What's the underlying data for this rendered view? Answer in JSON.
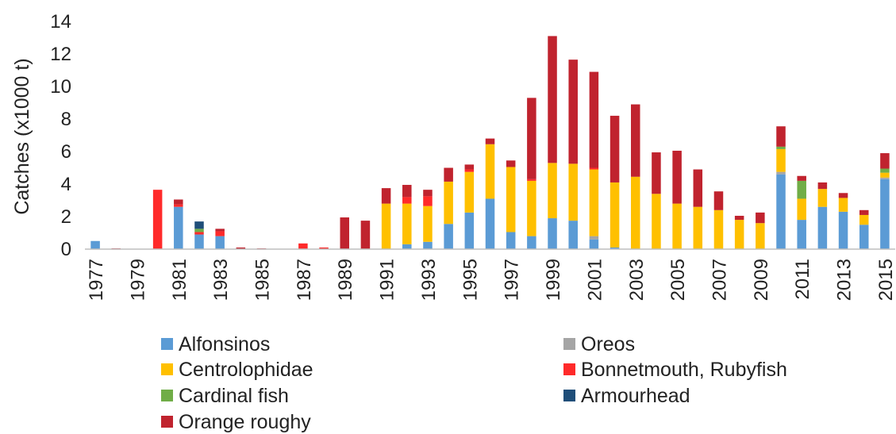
{
  "chart_data": {
    "type": "bar",
    "stacked": true,
    "ylabel": "Catches (x1000 t)",
    "ylim": [
      0,
      14
    ],
    "yticks": [
      0,
      2,
      4,
      6,
      8,
      10,
      12,
      14
    ],
    "grid": false,
    "legend_position": "bottom",
    "years": [
      1977,
      1978,
      1979,
      1980,
      1981,
      1982,
      1983,
      1984,
      1985,
      1986,
      1987,
      1988,
      1989,
      1990,
      1991,
      1992,
      1993,
      1994,
      1995,
      1996,
      1997,
      1998,
      1999,
      2000,
      2001,
      2002,
      2003,
      2004,
      2005,
      2006,
      2007,
      2008,
      2009,
      2010,
      2011,
      2012,
      2013,
      2014,
      2015
    ],
    "x_tick_labels": [
      "1977",
      "",
      "1979",
      "",
      "1981",
      "",
      "1983",
      "",
      "1985",
      "",
      "1987",
      "",
      "1989",
      "",
      "1991",
      "",
      "1993",
      "",
      "1995",
      "",
      "1997",
      "",
      "1999",
      "",
      "2001",
      "",
      "2003",
      "",
      "2005",
      "",
      "2007",
      "",
      "2009",
      "",
      "2011",
      "",
      "2013",
      "",
      "2015"
    ],
    "series": [
      {
        "name": "Alfonsinos",
        "color": "#5b9bd5",
        "values": [
          0.5,
          0,
          0,
          0,
          2.6,
          0.9,
          0.8,
          0,
          0,
          0,
          0,
          0,
          0,
          0,
          0,
          0.3,
          0.45,
          1.55,
          2.25,
          3.1,
          1.05,
          0.8,
          1.9,
          1.75,
          0.6,
          0.1,
          0,
          0,
          0,
          0,
          0,
          0,
          0,
          4.6,
          1.8,
          2.6,
          2.3,
          1.5,
          4.3
        ]
      },
      {
        "name": "Oreos",
        "color": "#a5a5a5",
        "values": [
          0,
          0,
          0,
          0,
          0,
          0,
          0,
          0,
          0,
          0,
          0,
          0,
          0,
          0,
          0,
          0,
          0,
          0,
          0,
          0,
          0,
          0,
          0,
          0,
          0.2,
          0,
          0,
          0,
          0,
          0,
          0,
          0,
          0,
          0.15,
          0,
          0,
          0,
          0,
          0.1
        ]
      },
      {
        "name": "Centrolophidae",
        "color": "#ffc000",
        "values": [
          0,
          0,
          0,
          0,
          0,
          0,
          0,
          0,
          0,
          0,
          0,
          0,
          0,
          0,
          2.8,
          2.5,
          2.2,
          2.6,
          2.5,
          3.35,
          4.0,
          3.4,
          3.4,
          3.5,
          4.1,
          4.0,
          4.45,
          3.4,
          2.8,
          2.6,
          2.4,
          1.8,
          1.6,
          1.4,
          1.3,
          1.1,
          0.85,
          0.6,
          0.3
        ]
      },
      {
        "name": "Bonnetmouth, Rubyfish",
        "color": "#ff2a2a",
        "values": [
          0,
          0,
          0,
          3.65,
          0.15,
          0.15,
          0.3,
          0,
          0,
          0,
          0.35,
          0.1,
          0,
          0,
          0,
          0.4,
          0.6,
          0,
          0.15,
          0,
          0,
          0.1,
          0,
          0,
          0.1,
          0,
          0,
          0,
          0,
          0,
          0,
          0,
          0,
          0,
          0,
          0,
          0,
          0,
          0
        ]
      },
      {
        "name": "Cardinal fish",
        "color": "#70ad47",
        "values": [
          0,
          0,
          0,
          0,
          0,
          0.2,
          0,
          0,
          0,
          0,
          0,
          0,
          0,
          0,
          0,
          0,
          0,
          0,
          0,
          0,
          0,
          0,
          0,
          0,
          0,
          0,
          0,
          0,
          0,
          0,
          0,
          0,
          0,
          0.15,
          1.1,
          0,
          0,
          0,
          0.25
        ]
      },
      {
        "name": "Armourhead",
        "color": "#1f4e79",
        "values": [
          0,
          0,
          0,
          0,
          0,
          0.45,
          0,
          0,
          0,
          0,
          0,
          0,
          0,
          0,
          0,
          0,
          0,
          0,
          0,
          0,
          0,
          0,
          0,
          0,
          0,
          0,
          0,
          0,
          0,
          0,
          0,
          0,
          0,
          0,
          0,
          0,
          0,
          0,
          0
        ]
      },
      {
        "name": "Orange roughy",
        "color": "#c0232e",
        "values": [
          0,
          0.05,
          0,
          0,
          0.3,
          0,
          0.15,
          0.1,
          0.05,
          0,
          0,
          0,
          1.95,
          1.75,
          0.95,
          0.75,
          0.4,
          0.85,
          0.3,
          0.35,
          0.4,
          5.0,
          7.8,
          6.4,
          5.9,
          4.1,
          4.45,
          2.55,
          3.25,
          2.3,
          1.15,
          0.25,
          0.65,
          1.25,
          0.3,
          0.4,
          0.3,
          0.3,
          0.95
        ]
      }
    ]
  }
}
